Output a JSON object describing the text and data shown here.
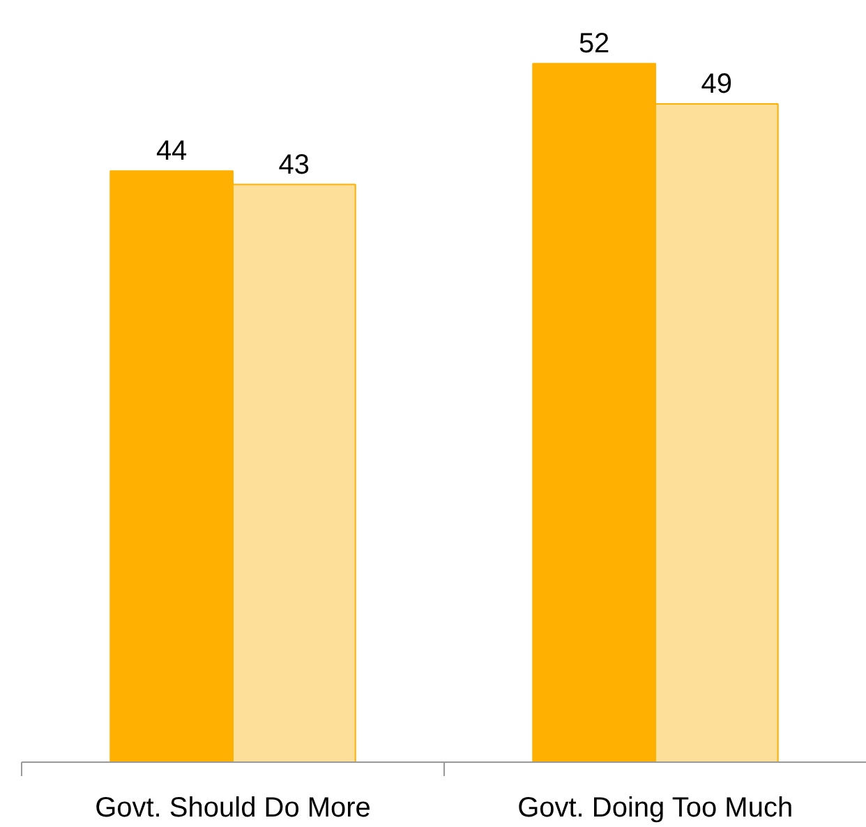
{
  "chart_data": {
    "type": "bar",
    "categories": [
      "Govt. Should Do More",
      "Govt. Doing Too Much"
    ],
    "series": [
      {
        "color": "#ffb000",
        "values": [
          44,
          52
        ]
      },
      {
        "color": "#fddf9a",
        "values": [
          43,
          49
        ]
      }
    ],
    "data_labels": true,
    "grid": false
  }
}
